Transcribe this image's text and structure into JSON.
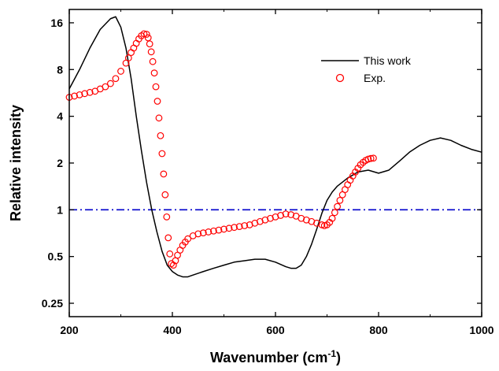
{
  "chart_data": {
    "type": "line",
    "title": "",
    "xlabel": "Wavenumber (cm",
    "xlabel_sup": "-1",
    "xlabel_end": ")",
    "ylabel": "Relative intensity",
    "xlim": [
      200,
      1000
    ],
    "ylim": [
      0.205,
      19.5
    ],
    "yscale": "log2",
    "xticks": [
      200,
      400,
      600,
      800,
      1000
    ],
    "xtick_labels": [
      "200",
      "400",
      "600",
      "800",
      "1000"
    ],
    "yticks": [
      0.25,
      0.5,
      1,
      2,
      4,
      8,
      16
    ],
    "ytick_labels": [
      "0.25",
      "0.5",
      "1",
      "2",
      "4",
      "8",
      "16"
    ],
    "legend_position": "top-right",
    "reference_line": {
      "y": 1,
      "style": "dash-dot",
      "color": "#0000cc"
    },
    "series": [
      {
        "name": "This work",
        "style": "line",
        "color": "#000000",
        "x": [
          200,
          220,
          240,
          260,
          280,
          290,
          300,
          310,
          320,
          330,
          340,
          350,
          360,
          370,
          380,
          390,
          400,
          410,
          420,
          430,
          440,
          460,
          480,
          500,
          520,
          540,
          560,
          580,
          600,
          620,
          630,
          640,
          650,
          660,
          670,
          680,
          690,
          700,
          710,
          720,
          740,
          760,
          780,
          800,
          820,
          840,
          860,
          880,
          900,
          920,
          940,
          960,
          980,
          1000
        ],
        "y": [
          6.0,
          8.0,
          11.0,
          14.5,
          17.0,
          17.5,
          15.0,
          11.0,
          7.0,
          4.0,
          2.4,
          1.5,
          1.0,
          0.72,
          0.54,
          0.44,
          0.4,
          0.38,
          0.37,
          0.37,
          0.38,
          0.4,
          0.42,
          0.44,
          0.46,
          0.47,
          0.48,
          0.48,
          0.46,
          0.43,
          0.42,
          0.42,
          0.44,
          0.5,
          0.6,
          0.75,
          0.95,
          1.15,
          1.3,
          1.42,
          1.6,
          1.75,
          1.8,
          1.72,
          1.8,
          2.05,
          2.35,
          2.6,
          2.8,
          2.9,
          2.8,
          2.6,
          2.45,
          2.35
        ]
      },
      {
        "name": "Exp.",
        "style": "markers",
        "marker": "open-circle",
        "color": "#ff0000",
        "x": [
          200,
          210,
          220,
          230,
          240,
          250,
          260,
          270,
          280,
          290,
          300,
          310,
          315,
          320,
          325,
          330,
          335,
          340,
          345,
          350,
          353,
          356,
          359,
          362,
          365,
          368,
          371,
          374,
          377,
          380,
          383,
          386,
          389,
          392,
          395,
          398,
          402,
          406,
          410,
          415,
          420,
          425,
          430,
          440,
          450,
          460,
          470,
          480,
          490,
          500,
          510,
          520,
          530,
          540,
          550,
          560,
          570,
          580,
          590,
          600,
          610,
          620,
          630,
          640,
          650,
          660,
          670,
          680,
          690,
          695,
          700,
          705,
          710,
          715,
          720,
          725,
          730,
          735,
          740,
          745,
          750,
          755,
          760,
          765,
          770,
          775,
          780,
          785,
          790
        ],
        "y": [
          5.3,
          5.4,
          5.5,
          5.6,
          5.7,
          5.8,
          6.0,
          6.2,
          6.5,
          7.0,
          7.8,
          8.8,
          9.5,
          10.3,
          11.0,
          11.8,
          12.6,
          13.2,
          13.6,
          13.5,
          12.8,
          11.7,
          10.4,
          9.0,
          7.6,
          6.2,
          5.0,
          3.9,
          3.0,
          2.3,
          1.7,
          1.25,
          0.9,
          0.66,
          0.52,
          0.45,
          0.44,
          0.47,
          0.51,
          0.55,
          0.59,
          0.62,
          0.65,
          0.68,
          0.7,
          0.71,
          0.72,
          0.73,
          0.74,
          0.75,
          0.76,
          0.77,
          0.78,
          0.79,
          0.8,
          0.82,
          0.84,
          0.86,
          0.88,
          0.9,
          0.92,
          0.94,
          0.93,
          0.91,
          0.88,
          0.86,
          0.84,
          0.82,
          0.8,
          0.79,
          0.8,
          0.83,
          0.88,
          0.96,
          1.05,
          1.15,
          1.25,
          1.35,
          1.45,
          1.55,
          1.65,
          1.75,
          1.85,
          1.95,
          2.02,
          2.08,
          2.12,
          2.14,
          2.15
        ]
      }
    ]
  }
}
